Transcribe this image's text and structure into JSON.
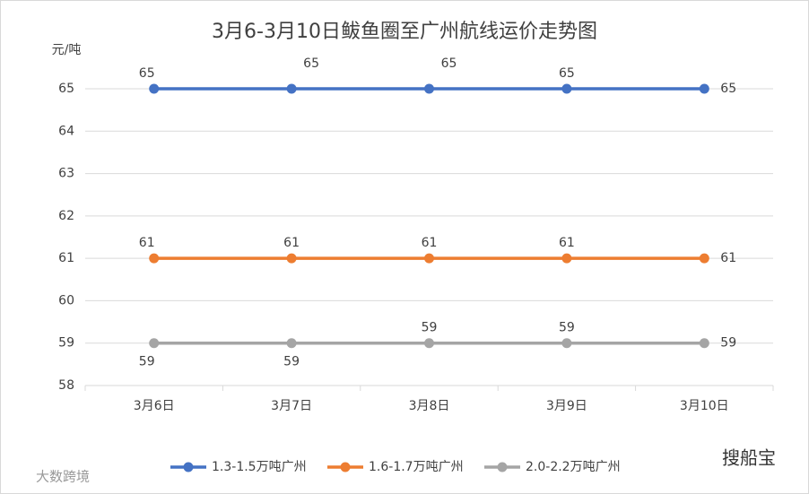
{
  "chart_data": {
    "type": "line",
    "title": "3月6-3月10日鲅鱼圈至广州航线运价走势图",
    "y_label": "元/吨",
    "categories": [
      "3月6日",
      "3月7日",
      "3月8日",
      "3月9日",
      "3月10日"
    ],
    "series": [
      {
        "name": "1.3-1.5万吨广州",
        "color": "#4472c4",
        "values": [
          65,
          65,
          65,
          65,
          65
        ]
      },
      {
        "name": "1.6-1.7万吨广州",
        "color": "#ed7d31",
        "values": [
          61,
          61,
          61,
          61,
          61
        ]
      },
      {
        "name": "2.0-2.2万吨广州",
        "color": "#a5a5a5",
        "values": [
          59,
          59,
          59,
          59,
          59
        ]
      }
    ],
    "ylim": [
      58,
      65
    ],
    "yticks": [
      58,
      59,
      60,
      61,
      62,
      63,
      64,
      65
    ],
    "grid": true,
    "legend": "bottom",
    "watermarks": [
      "搜船宝",
      "大数跨境"
    ]
  }
}
